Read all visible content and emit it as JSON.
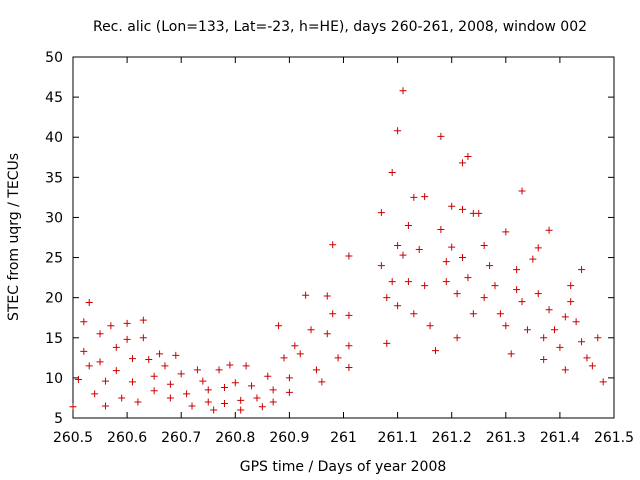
{
  "chart_data": {
    "type": "scatter",
    "title": "Rec. alic (Lon=133, Lat=-23, h=HE), days 260-261, 2008, window 002",
    "xlabel": "GPS time / Days of year 2008",
    "ylabel": "STEC from uqrg / TECUs",
    "xlim": [
      260.5,
      261.5
    ],
    "ylim": [
      5,
      50
    ],
    "xticks": [
      260.5,
      260.6,
      260.7,
      260.8,
      260.9,
      261.0,
      261.1,
      261.2,
      261.3,
      261.4,
      261.5
    ],
    "xtick_labels": [
      "260.5",
      "260.6",
      "260.7",
      "260.8",
      "260.9",
      "261",
      "261.1",
      "261.2",
      "261.3",
      "261.4",
      "261.5"
    ],
    "yticks": [
      5,
      10,
      15,
      20,
      25,
      30,
      35,
      40,
      45,
      50
    ],
    "ytick_labels": [
      "5",
      "10",
      "15",
      "20",
      "25",
      "30",
      "35",
      "40",
      "45",
      "50"
    ],
    "grid": false,
    "marker": "plus",
    "color": "#cc0000",
    "series": [
      {
        "points": [
          [
            260.5,
            6.4
          ],
          [
            260.51,
            9.8
          ],
          [
            260.52,
            13.3
          ],
          [
            260.52,
            17.0
          ],
          [
            260.53,
            19.4
          ],
          [
            260.53,
            11.5
          ],
          [
            260.54,
            8.0
          ],
          [
            260.55,
            15.5
          ],
          [
            260.55,
            12.0
          ],
          [
            260.56,
            9.6
          ],
          [
            260.56,
            6.5
          ],
          [
            260.57,
            16.5
          ],
          [
            260.58,
            13.8
          ],
          [
            260.58,
            10.9
          ],
          [
            260.59,
            7.5
          ],
          [
            260.6,
            16.8
          ],
          [
            260.6,
            14.8
          ],
          [
            260.61,
            12.4
          ],
          [
            260.61,
            9.5
          ],
          [
            260.62,
            7.0
          ],
          [
            260.63,
            17.2
          ],
          [
            260.63,
            15.0
          ],
          [
            260.64,
            12.3
          ],
          [
            260.65,
            10.2
          ],
          [
            260.65,
            8.4
          ],
          [
            260.66,
            13.0
          ],
          [
            260.67,
            11.5
          ],
          [
            260.68,
            9.2
          ],
          [
            260.68,
            7.5
          ],
          [
            260.69,
            12.8
          ],
          [
            260.7,
            10.5
          ],
          [
            260.71,
            8.0
          ],
          [
            260.72,
            6.5
          ],
          [
            260.73,
            11.0
          ],
          [
            260.74,
            9.6
          ],
          [
            260.75,
            8.5
          ],
          [
            260.75,
            7.0
          ],
          [
            260.76,
            6.0
          ],
          [
            260.77,
            11.0
          ],
          [
            260.78,
            8.8
          ],
          [
            260.78,
            6.8
          ],
          [
            260.79,
            11.6
          ],
          [
            260.8,
            9.4
          ],
          [
            260.81,
            7.2
          ],
          [
            260.81,
            6.0
          ],
          [
            260.82,
            11.5
          ],
          [
            260.83,
            9.0
          ],
          [
            260.84,
            7.5
          ],
          [
            260.85,
            6.4
          ],
          [
            260.86,
            10.2
          ],
          [
            260.87,
            8.5
          ],
          [
            260.87,
            7.0
          ],
          [
            260.88,
            16.5
          ],
          [
            260.89,
            12.5
          ],
          [
            260.9,
            10.0
          ],
          [
            260.9,
            8.2
          ],
          [
            260.91,
            14.0
          ],
          [
            260.92,
            13.0
          ],
          [
            260.93,
            20.3
          ],
          [
            260.94,
            16.0
          ],
          [
            260.95,
            11.0
          ],
          [
            260.96,
            9.5
          ],
          [
            260.97,
            20.2
          ],
          [
            260.97,
            15.5
          ],
          [
            260.98,
            18.0
          ],
          [
            260.98,
            26.6
          ],
          [
            260.99,
            12.5
          ],
          [
            261.01,
            25.2
          ],
          [
            261.01,
            17.8
          ],
          [
            261.01,
            14.0
          ],
          [
            261.01,
            11.3
          ],
          [
            261.07,
            30.6
          ],
          [
            261.07,
            24.0
          ],
          [
            261.08,
            20.0
          ],
          [
            261.08,
            14.3
          ],
          [
            261.09,
            35.6
          ],
          [
            261.09,
            22.0
          ],
          [
            261.1,
            40.8
          ],
          [
            261.1,
            26.5
          ],
          [
            261.1,
            19.0
          ],
          [
            261.11,
            45.8
          ],
          [
            261.11,
            25.3
          ],
          [
            261.12,
            29.0
          ],
          [
            261.12,
            22.0
          ],
          [
            261.13,
            32.5
          ],
          [
            261.13,
            18.0
          ],
          [
            261.14,
            26.0
          ],
          [
            261.15,
            32.6
          ],
          [
            261.15,
            21.5
          ],
          [
            261.16,
            16.5
          ],
          [
            261.17,
            13.4
          ],
          [
            261.18,
            40.1
          ],
          [
            261.18,
            28.5
          ],
          [
            261.19,
            24.5
          ],
          [
            261.19,
            22.0
          ],
          [
            261.2,
            31.4
          ],
          [
            261.2,
            26.3
          ],
          [
            261.21,
            20.5
          ],
          [
            261.21,
            15.0
          ],
          [
            261.22,
            36.8
          ],
          [
            261.22,
            31.0
          ],
          [
            261.22,
            25.0
          ],
          [
            261.23,
            37.6
          ],
          [
            261.23,
            22.5
          ],
          [
            261.24,
            30.5
          ],
          [
            261.24,
            18.0
          ],
          [
            261.25,
            30.5
          ],
          [
            261.26,
            26.5
          ],
          [
            261.26,
            20.0
          ],
          [
            261.27,
            24.0
          ],
          [
            261.28,
            21.5
          ],
          [
            261.29,
            18.0
          ],
          [
            261.3,
            28.2
          ],
          [
            261.3,
            16.5
          ],
          [
            261.31,
            13.0
          ],
          [
            261.32,
            23.5
          ],
          [
            261.32,
            21.0
          ],
          [
            261.33,
            33.3
          ],
          [
            261.33,
            19.5
          ],
          [
            261.34,
            16.0
          ],
          [
            261.35,
            24.8
          ],
          [
            261.36,
            26.2
          ],
          [
            261.36,
            20.5
          ],
          [
            261.37,
            15.0
          ],
          [
            261.37,
            12.3
          ],
          [
            261.38,
            28.4
          ],
          [
            261.38,
            18.5
          ],
          [
            261.39,
            16.0
          ],
          [
            261.4,
            13.8
          ],
          [
            261.41,
            17.6
          ],
          [
            261.41,
            11.0
          ],
          [
            261.42,
            21.5
          ],
          [
            261.42,
            19.5
          ],
          [
            261.43,
            17.0
          ],
          [
            261.44,
            23.5
          ],
          [
            261.44,
            14.5
          ],
          [
            261.45,
            12.5
          ],
          [
            261.46,
            11.5
          ],
          [
            261.47,
            15.0
          ],
          [
            261.48,
            9.5
          ]
        ]
      }
    ]
  }
}
